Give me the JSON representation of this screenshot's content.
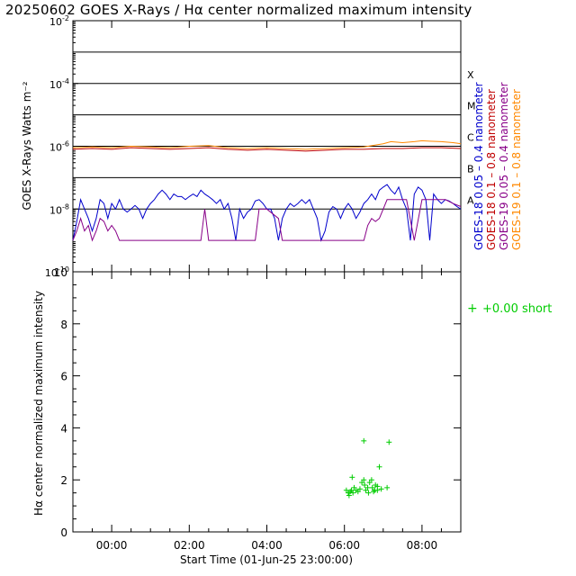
{
  "title": "20250602 GOES X-Rays / Hα center normalized maximum intensity",
  "top_panel": {
    "ylabel": "GOES X-Rays Watts m⁻²",
    "flare_classes": [
      "X",
      "M",
      "C",
      "B",
      "A"
    ],
    "legend": [
      {
        "label": "GOES-18  0.05  –  0.4  nanometer",
        "color": "#0000cc"
      },
      {
        "label": "GOES-18  0.1  –  0.8  nanometer",
        "color": "#c00000"
      },
      {
        "label": "GOES-19  0.05  –  0.4  nanometer",
        "color": "#880088"
      },
      {
        "label": "GOES-19  0.1  –  0.8  nanometer",
        "color": "#ff8800"
      }
    ]
  },
  "bottom_panel": {
    "ylabel": "Hα center normalized maximum intensity",
    "legend": {
      "symbol": "+",
      "label": "+0.00 short",
      "color": "#00cc00"
    }
  },
  "xlabel": "Start Time (01-Jun-25 23:00:00)",
  "chart_data": [
    {
      "type": "line",
      "title": "GOES X-Rays",
      "yscale": "log",
      "ylim": [
        1e-10,
        0.01
      ],
      "ytick_labels": [
        {
          "mantissa": "10",
          "exp": "-10",
          "value": 1e-10
        },
        {
          "mantissa": "10",
          "exp": "-8",
          "value": 1e-08
        },
        {
          "mantissa": "10",
          "exp": "-6",
          "value": 1e-06
        },
        {
          "mantissa": "10",
          "exp": "-4",
          "value": 0.0001
        },
        {
          "mantissa": "10",
          "exp": "-2",
          "value": 0.01
        }
      ],
      "class_levels": [
        0.001,
        0.0001,
        1e-05,
        1e-06,
        1e-07,
        1e-08
      ],
      "xlim_hours": [
        -1.0,
        9.0
      ],
      "series": [
        {
          "name": "GOES-18 0.05-0.4 nm",
          "color": "#0000cc",
          "x": [
            -1.0,
            -0.9,
            -0.8,
            -0.7,
            -0.6,
            -0.5,
            -0.4,
            -0.3,
            -0.2,
            -0.1,
            0.0,
            0.1,
            0.2,
            0.3,
            0.4,
            0.5,
            0.6,
            0.7,
            0.8,
            0.9,
            1.0,
            1.1,
            1.2,
            1.3,
            1.4,
            1.5,
            1.6,
            1.7,
            1.8,
            1.9,
            2.0,
            2.1,
            2.2,
            2.3,
            2.4,
            2.5,
            2.6,
            2.7,
            2.8,
            2.9,
            3.0,
            3.1,
            3.2,
            3.3,
            3.4,
            3.5,
            3.6,
            3.7,
            3.8,
            3.9,
            4.0,
            4.1,
            4.2,
            4.3,
            4.4,
            4.5,
            4.6,
            4.7,
            4.8,
            4.9,
            5.0,
            5.1,
            5.2,
            5.3,
            5.4,
            5.5,
            5.6,
            5.7,
            5.8,
            5.9,
            6.0,
            6.1,
            6.2,
            6.3,
            6.4,
            6.5,
            6.6,
            6.7,
            6.8,
            6.9,
            7.0,
            7.1,
            7.2,
            7.3,
            7.4,
            7.5,
            7.6,
            7.7,
            7.8,
            7.9,
            8.0,
            8.1,
            8.2,
            8.3,
            8.4,
            8.5,
            8.6,
            8.7,
            8.8,
            8.9,
            9.0
          ],
          "y": [
            1e-09,
            4e-09,
            2e-08,
            1e-08,
            5e-09,
            2e-09,
            5e-09,
            2e-08,
            1.5e-08,
            5e-09,
            1.5e-08,
            1e-08,
            2e-08,
            1e-08,
            8e-09,
            1e-08,
            1.3e-08,
            1e-08,
            5e-09,
            1e-08,
            1.5e-08,
            2e-08,
            3e-08,
            4e-08,
            3e-08,
            2e-08,
            3e-08,
            2.5e-08,
            2.5e-08,
            2e-08,
            2.5e-08,
            3e-08,
            2.5e-08,
            4e-08,
            3e-08,
            2.5e-08,
            2e-08,
            1.5e-08,
            2e-08,
            1e-08,
            1.5e-08,
            5e-09,
            1e-09,
            1e-08,
            5e-09,
            8e-09,
            1e-08,
            1.8e-08,
            2e-08,
            1.5e-08,
            1e-08,
            1e-08,
            5e-09,
            1e-09,
            5e-09,
            1e-08,
            1.5e-08,
            1.2e-08,
            1.5e-08,
            2e-08,
            1.5e-08,
            2e-08,
            1e-08,
            5e-09,
            1e-09,
            2e-09,
            8e-09,
            1.2e-08,
            1e-08,
            5e-09,
            1e-08,
            1.5e-08,
            1e-08,
            5e-09,
            8e-09,
            1.5e-08,
            2e-08,
            3e-08,
            2e-08,
            4e-08,
            5e-08,
            6e-08,
            4e-08,
            3e-08,
            5e-08,
            2e-08,
            1e-08,
            1e-09,
            3e-08,
            5e-08,
            4e-08,
            2e-08,
            1e-09,
            3e-08,
            2e-08,
            1.5e-08,
            2e-08,
            1.8e-08,
            1.5e-08,
            1.2e-08,
            1e-08
          ]
        },
        {
          "name": "GOES-18 0.1-0.8 nm",
          "color": "#c00000",
          "x": [
            -1.0,
            -0.5,
            0.0,
            0.5,
            1.0,
            1.5,
            2.0,
            2.5,
            3.0,
            3.5,
            4.0,
            4.5,
            5.0,
            5.5,
            6.0,
            6.5,
            7.0,
            7.5,
            8.0,
            8.5,
            9.0
          ],
          "y": [
            8e-07,
            8.5e-07,
            8e-07,
            9e-07,
            8.5e-07,
            8e-07,
            8.5e-07,
            9e-07,
            8e-07,
            7.5e-07,
            8e-07,
            7.5e-07,
            7e-07,
            7.5e-07,
            8e-07,
            8e-07,
            8.5e-07,
            8.5e-07,
            9e-07,
            9e-07,
            8.5e-07
          ]
        },
        {
          "name": "GOES-19 0.05-0.4 nm",
          "color": "#880088",
          "x": [
            -1.0,
            -0.9,
            -0.8,
            -0.7,
            -0.6,
            -0.5,
            -0.4,
            -0.3,
            -0.2,
            -0.1,
            0.0,
            0.1,
            0.2,
            0.3,
            0.4,
            0.5,
            1.0,
            1.5,
            2.0,
            2.3,
            2.4,
            2.5,
            2.6,
            3.0,
            3.5,
            3.7,
            3.8,
            3.9,
            4.0,
            4.3,
            4.4,
            5.0,
            5.5,
            6.0,
            6.2,
            6.4,
            6.5,
            6.6,
            6.7,
            6.8,
            6.9,
            7.0,
            7.1,
            7.2,
            7.4,
            7.6,
            7.8,
            8.0,
            8.2,
            8.4,
            8.6,
            8.8,
            9.0
          ],
          "y": [
            1e-09,
            2e-09,
            5e-09,
            2e-09,
            3e-09,
            1e-09,
            2e-09,
            5e-09,
            4e-09,
            2e-09,
            3e-09,
            2e-09,
            1e-09,
            1e-09,
            1e-09,
            1e-09,
            1e-09,
            1e-09,
            1e-09,
            1e-09,
            1e-08,
            1e-09,
            1e-09,
            1e-09,
            1e-09,
            1e-09,
            1e-08,
            1e-08,
            1e-08,
            5e-09,
            1e-09,
            1e-09,
            1e-09,
            1e-09,
            1e-09,
            1e-09,
            1e-09,
            3e-09,
            5e-09,
            4e-09,
            5e-09,
            1e-08,
            2e-08,
            2e-08,
            2e-08,
            2e-08,
            1e-09,
            2e-08,
            2e-08,
            2e-08,
            2e-08,
            1.5e-08,
            1.2e-08
          ]
        },
        {
          "name": "GOES-19 0.1-0.8 nm",
          "color": "#ff8800",
          "x": [
            -1.0,
            -0.5,
            0.0,
            0.5,
            1.0,
            1.5,
            2.0,
            2.5,
            3.0,
            3.5,
            4.0,
            4.5,
            5.0,
            5.5,
            6.0,
            6.5,
            7.0,
            7.2,
            7.5,
            7.8,
            8.0,
            8.2,
            8.5,
            8.8,
            9.0
          ],
          "y": [
            9e-07,
            9.5e-07,
            9e-07,
            1e-06,
            9.5e-07,
            9e-07,
            1e-06,
            1.05e-06,
            9e-07,
            8.5e-07,
            9e-07,
            8.5e-07,
            8e-07,
            8.5e-07,
            9e-07,
            9.5e-07,
            1.2e-06,
            1.4e-06,
            1.3e-06,
            1.4e-06,
            1.5e-06,
            1.45e-06,
            1.4e-06,
            1.3e-06,
            1.2e-06
          ]
        }
      ]
    },
    {
      "type": "scatter",
      "title": "Hα center normalized maximum intensity",
      "ylim": [
        0,
        10
      ],
      "yticks": [
        0,
        2,
        4,
        6,
        8,
        10
      ],
      "xlim_hours": [
        -1.0,
        9.0
      ],
      "xtick_labels": [
        "00:00",
        "02:00",
        "04:00",
        "06:00",
        "08:00"
      ],
      "xtick_values": [
        0,
        2,
        4,
        6,
        8
      ],
      "series": [
        {
          "name": "+0.00 short",
          "marker": "+",
          "color": "#00cc00",
          "x": [
            6.05,
            6.1,
            6.12,
            6.15,
            6.18,
            6.22,
            6.25,
            6.3,
            6.35,
            6.4,
            6.45,
            6.5,
            6.52,
            6.55,
            6.6,
            6.62,
            6.65,
            6.7,
            6.72,
            6.75,
            6.78,
            6.8,
            6.85,
            6.9,
            6.95,
            7.15,
            7.1,
            6.5,
            6.2,
            6.85
          ],
          "y": [
            1.6,
            1.5,
            1.4,
            1.55,
            1.6,
            1.5,
            1.7,
            1.6,
            1.55,
            1.65,
            1.9,
            3.5,
            1.8,
            1.6,
            1.7,
            1.5,
            1.9,
            2.0,
            1.7,
            1.55,
            1.6,
            1.8,
            1.75,
            2.5,
            1.65,
            3.45,
            1.7,
            2.0,
            2.1,
            1.6
          ]
        }
      ]
    }
  ]
}
